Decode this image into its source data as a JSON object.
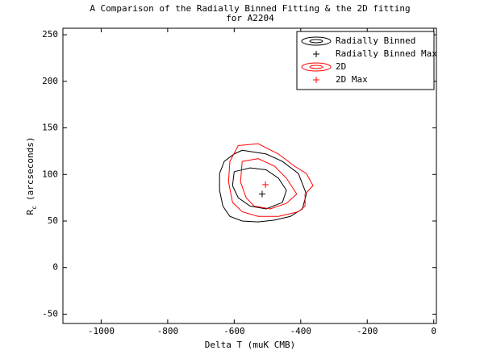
{
  "chart_data": {
    "type": "contour",
    "title": "A Comparison of the Radially Binned Fitting & the 2D fitting",
    "subtitle": "for A2204",
    "xlabel": "Delta T (muK CMB)",
    "ylabel_main": "R",
    "ylabel_sub": "c",
    "ylabel_rest": "(arcseconds)",
    "xlim": [
      -1115,
      8
    ],
    "ylim": [
      -60,
      257
    ],
    "xticks": [
      -1000,
      -800,
      -600,
      -400,
      -200,
      0
    ],
    "yticks": [
      -50,
      0,
      50,
      100,
      150,
      200,
      250
    ],
    "legend": "upper right",
    "series": [
      {
        "name": "Radially Binned",
        "color": "#000000",
        "kind": "contour",
        "x": [
          -576,
          -504,
          -455,
          -407,
          -383,
          -395,
          -431,
          -479,
          -528,
          -576,
          -613,
          -634,
          -644,
          -644,
          -630,
          -600,
          -576
        ],
        "y": [
          126,
          122,
          114,
          101,
          79,
          63,
          55,
          51,
          49,
          50,
          55,
          66,
          83,
          101,
          114,
          122,
          126
        ]
      },
      {
        "name": null,
        "color": "#000000",
        "kind": "contour",
        "x": [
          -600,
          -552,
          -504,
          -467,
          -443,
          -455,
          -504,
          -552,
          -588,
          -605,
          -600
        ],
        "y": [
          103,
          107,
          105,
          96,
          83,
          70,
          63,
          66,
          75,
          88,
          103
        ]
      },
      {
        "name": "Radially Binned Max",
        "color": "#000000",
        "kind": "marker",
        "x": [
          -516
        ],
        "y": [
          79
        ]
      },
      {
        "name": "2D",
        "color": "#ff0000",
        "kind": "contour",
        "x": [
          -588,
          -528,
          -467,
          -419,
          -383,
          -363,
          -387,
          -387,
          -407,
          -467,
          -528,
          -576,
          -605,
          -617,
          -613,
          -588
        ],
        "y": [
          131,
          133,
          122,
          109,
          101,
          88,
          79,
          66,
          60,
          55,
          55,
          60,
          70,
          92,
          114,
          131
        ]
      },
      {
        "name": null,
        "color": "#ff0000",
        "kind": "contour",
        "x": [
          -576,
          -528,
          -479,
          -443,
          -412,
          -443,
          -492,
          -540,
          -564,
          -581,
          -576
        ],
        "y": [
          114,
          117,
          109,
          96,
          79,
          69,
          63,
          66,
          75,
          92,
          114
        ]
      },
      {
        "name": "2D Max",
        "color": "#ff0000",
        "kind": "marker",
        "x": [
          -506
        ],
        "y": [
          89
        ]
      }
    ]
  }
}
